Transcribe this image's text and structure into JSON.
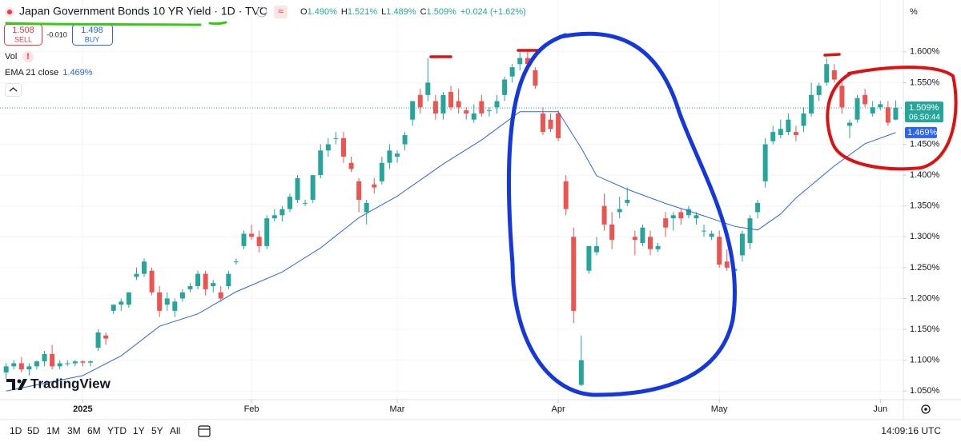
{
  "chart_data": {
    "type": "candlestick",
    "up_color": "#26a69a",
    "down_color": "#ef5350",
    "open": [
      1.08,
      1.09,
      1.095,
      1.085,
      1.09,
      1.098,
      1.11,
      1.09,
      1.095,
      1.095,
      1.098,
      1.096,
      1.12,
      1.14,
      1.18,
      1.19,
      1.19,
      1.235,
      1.24,
      1.245,
      1.21,
      1.19,
      1.18,
      1.2,
      1.215,
      1.22,
      1.24,
      1.22,
      1.21,
      1.22,
      1.26,
      1.285,
      1.305,
      1.3,
      1.285,
      1.33,
      1.335,
      1.345,
      1.36,
      1.355,
      1.36,
      1.4,
      1.44,
      1.46,
      1.46,
      1.42,
      1.39,
      1.34,
      1.385,
      1.39,
      1.42,
      1.43,
      1.45,
      1.49,
      1.53,
      1.53,
      1.52,
      1.5,
      1.535,
      1.52,
      1.505,
      1.49,
      1.52,
      1.505,
      1.51,
      1.53,
      1.56,
      1.58,
      1.59,
      1.57,
      1.5,
      1.49,
      1.5,
      1.39,
      1.3,
      1.06,
      1.245,
      1.275,
      1.35,
      1.32,
      1.34,
      1.355,
      1.3,
      1.29,
      1.3,
      1.28,
      1.33,
      1.33,
      1.34,
      1.335,
      1.33,
      1.31,
      1.3,
      1.3,
      1.26,
      1.245,
      1.27,
      1.29,
      1.34,
      1.39,
      1.455,
      1.465,
      1.47,
      1.47,
      1.48,
      1.5,
      1.53,
      1.55,
      1.57,
      1.545,
      1.48,
      1.49,
      1.53,
      1.5,
      1.51,
      1.51,
      1.49
    ],
    "high": [
      1.095,
      1.1,
      1.105,
      1.095,
      1.1,
      1.115,
      1.125,
      1.1,
      1.1,
      1.1,
      1.1,
      1.1,
      1.15,
      1.145,
      1.19,
      1.2,
      1.21,
      1.25,
      1.265,
      1.25,
      1.22,
      1.21,
      1.2,
      1.215,
      1.225,
      1.245,
      1.245,
      1.23,
      1.22,
      1.245,
      1.265,
      1.31,
      1.32,
      1.31,
      1.335,
      1.345,
      1.35,
      1.37,
      1.4,
      1.36,
      1.4,
      1.45,
      1.46,
      1.47,
      1.47,
      1.43,
      1.395,
      1.36,
      1.395,
      1.43,
      1.45,
      1.44,
      1.47,
      1.52,
      1.54,
      1.59,
      1.53,
      1.535,
      1.545,
      1.54,
      1.51,
      1.515,
      1.53,
      1.51,
      1.53,
      1.56,
      1.58,
      1.6,
      1.6,
      1.575,
      1.51,
      1.5,
      1.505,
      1.4,
      1.315,
      1.14,
      1.285,
      1.3,
      1.37,
      1.34,
      1.365,
      1.38,
      1.31,
      1.32,
      1.31,
      1.29,
      1.34,
      1.34,
      1.345,
      1.35,
      1.34,
      1.32,
      1.31,
      1.31,
      1.28,
      1.25,
      1.31,
      1.335,
      1.36,
      1.46,
      1.48,
      1.49,
      1.5,
      1.48,
      1.51,
      1.55,
      1.55,
      1.59,
      1.58,
      1.55,
      1.49,
      1.53,
      1.54,
      1.52,
      1.52,
      1.52,
      1.521
    ],
    "low": [
      1.07,
      1.085,
      1.08,
      1.075,
      1.085,
      1.09,
      1.085,
      1.085,
      1.09,
      1.09,
      1.09,
      1.09,
      1.115,
      1.125,
      1.175,
      1.18,
      1.185,
      1.23,
      1.235,
      1.205,
      1.17,
      1.18,
      1.17,
      1.195,
      1.21,
      1.215,
      1.205,
      1.21,
      1.195,
      1.215,
      1.255,
      1.28,
      1.295,
      1.275,
      1.28,
      1.325,
      1.325,
      1.34,
      1.355,
      1.35,
      1.355,
      1.395,
      1.43,
      1.45,
      1.42,
      1.405,
      1.34,
      1.32,
      1.37,
      1.385,
      1.41,
      1.42,
      1.44,
      1.48,
      1.5,
      1.52,
      1.49,
      1.49,
      1.505,
      1.5,
      1.49,
      1.485,
      1.495,
      1.495,
      1.5,
      1.52,
      1.55,
      1.57,
      1.575,
      1.54,
      1.465,
      1.47,
      1.455,
      1.335,
      1.16,
      1.058,
      1.24,
      1.27,
      1.31,
      1.28,
      1.33,
      1.35,
      1.27,
      1.285,
      1.27,
      1.275,
      1.3,
      1.31,
      1.32,
      1.33,
      1.32,
      1.3,
      1.295,
      1.25,
      1.245,
      1.245,
      1.26,
      1.28,
      1.33,
      1.38,
      1.45,
      1.46,
      1.465,
      1.455,
      1.47,
      1.495,
      1.52,
      1.545,
      1.55,
      1.5,
      1.46,
      1.485,
      1.51,
      1.495,
      1.505,
      1.48,
      1.489
    ],
    "close": [
      1.09,
      1.095,
      1.085,
      1.09,
      1.098,
      1.11,
      1.09,
      1.095,
      1.095,
      1.098,
      1.096,
      1.098,
      1.145,
      1.135,
      1.19,
      1.195,
      1.21,
      1.24,
      1.26,
      1.21,
      1.18,
      1.2,
      1.195,
      1.21,
      1.22,
      1.24,
      1.215,
      1.225,
      1.2,
      1.24,
      1.26,
      1.305,
      1.3,
      1.285,
      1.33,
      1.335,
      1.345,
      1.365,
      1.395,
      1.355,
      1.4,
      1.44,
      1.45,
      1.46,
      1.43,
      1.41,
      1.36,
      1.355,
      1.38,
      1.42,
      1.44,
      1.435,
      1.465,
      1.52,
      1.51,
      1.55,
      1.5,
      1.53,
      1.51,
      1.51,
      1.5,
      1.5,
      1.5,
      1.505,
      1.52,
      1.555,
      1.575,
      1.59,
      1.58,
      1.545,
      1.47,
      1.475,
      1.46,
      1.345,
      1.18,
      1.1,
      1.285,
      1.285,
      1.32,
      1.295,
      1.345,
      1.36,
      1.295,
      1.315,
      1.28,
      1.285,
      1.315,
      1.335,
      1.33,
      1.345,
      1.335,
      1.31,
      1.305,
      1.255,
      1.25,
      1.248,
      1.305,
      1.33,
      1.355,
      1.45,
      1.47,
      1.475,
      1.49,
      1.465,
      1.5,
      1.53,
      1.545,
      1.58,
      1.555,
      1.51,
      1.485,
      1.525,
      1.515,
      1.51,
      1.515,
      1.485,
      1.509
    ],
    "ema": {
      "color": "#2962ff",
      "x": [
        0,
        10,
        15,
        20,
        25,
        30,
        36,
        41,
        46,
        51,
        57,
        62,
        67,
        72,
        75,
        77,
        81,
        86,
        91,
        95,
        98,
        101,
        103,
        108,
        112,
        116
      ],
      "values": [
        1.05,
        1.075,
        1.107,
        1.155,
        1.175,
        1.211,
        1.243,
        1.282,
        1.331,
        1.366,
        1.418,
        1.457,
        1.503,
        1.503,
        1.444,
        1.399,
        1.377,
        1.354,
        1.334,
        1.317,
        1.311,
        1.337,
        1.363,
        1.415,
        1.451,
        1.469
      ]
    },
    "last_price": {
      "value": 1.509,
      "label": "1.509%"
    },
    "countdown": "06:50:44",
    "ema_price": {
      "value": 1.469,
      "label": "1.469%"
    },
    "xlim": [
      -0.8,
      117
    ],
    "xticks": [
      {
        "value": 10,
        "label": "2025"
      },
      {
        "value": 32,
        "label": "Feb"
      },
      {
        "value": 51,
        "label": "Mar"
      },
      {
        "value": 72,
        "label": "Apr"
      },
      {
        "value": 93,
        "label": "May"
      },
      {
        "value": 114,
        "label": "Jun"
      }
    ],
    "ylim": [
      1.036,
      1.684
    ],
    "yticks": [
      {
        "value": 1.05,
        "label": "1.050%"
      },
      {
        "value": 1.1,
        "label": "1.100%"
      },
      {
        "value": 1.15,
        "label": "1.150%"
      },
      {
        "value": 1.2,
        "label": "1.200%"
      },
      {
        "value": 1.25,
        "label": "1.250%"
      },
      {
        "value": 1.3,
        "label": "1.300%"
      },
      {
        "value": 1.35,
        "label": "1.350%"
      },
      {
        "value": 1.4,
        "label": "1.400%"
      },
      {
        "value": 1.45,
        "label": "1.450%"
      },
      {
        "value": 1.5,
        "label": "1.500%"
      },
      {
        "value": 1.55,
        "label": "1.550%"
      },
      {
        "value": 1.6,
        "label": "1.600%"
      }
    ],
    "grid": true
  },
  "header": {
    "title": "Japan Government Bonds 10 YR Yield · 1D · TVC",
    "ohlc": [
      {
        "key": "O",
        "value": "1.490%"
      },
      {
        "key": "H",
        "value": "1.521%"
      },
      {
        "key": "L",
        "value": "1.489%"
      },
      {
        "key": "C",
        "value": "1.509%"
      }
    ],
    "change": "+0.024 (+1.62%)"
  },
  "trade": {
    "sell_price": "1.508",
    "sell": "SELL",
    "spread": "-0.010",
    "buy_price": "1.498",
    "buy": "BUY"
  },
  "indicators": {
    "vol": "Vol",
    "ema": "EMA 21 close",
    "ema_value": "1.469%"
  },
  "logo": "TradingView",
  "unit": "%",
  "ranges": [
    "1D",
    "5D",
    "1M",
    "3M",
    "6M",
    "YTD",
    "1Y",
    "5Y",
    "All"
  ],
  "clock": "14:09:16 UTC"
}
